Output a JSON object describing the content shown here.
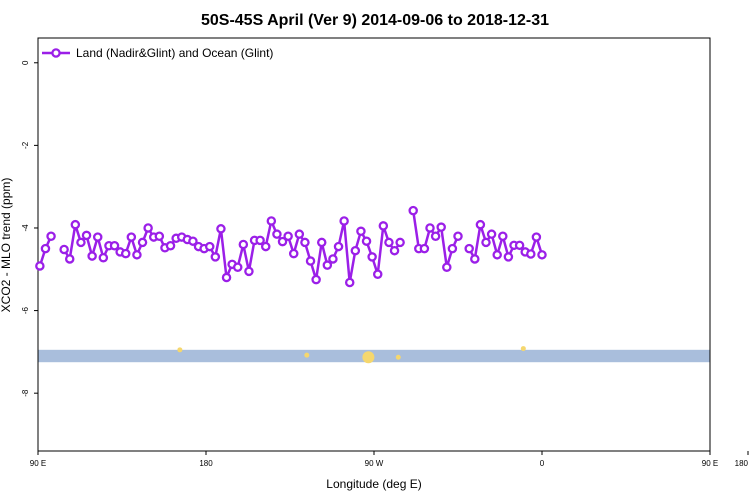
{
  "chart_data": {
    "type": "line",
    "title": "50S-45S April (Ver 9)   2014-09-06 to 2018-12-31",
    "xlabel": "Longitude (deg E)",
    "ylabel": "XCO2 - MLO trend (ppm)",
    "xlim": [
      90,
      450
    ],
    "ylim": [
      -9.4,
      0.6
    ],
    "x_ticks": [
      {
        "value": 90,
        "label": "90 E"
      },
      {
        "value": 180,
        "label": "180"
      },
      {
        "value": 270,
        "label": "90 W"
      },
      {
        "value": 360,
        "label": "0"
      },
      {
        "value": 450,
        "label": "90 E"
      },
      {
        "value": 540,
        "label": "180"
      }
    ],
    "y_ticks": [
      {
        "value": 0,
        "label": "0"
      },
      {
        "value": -2,
        "label": "-2"
      },
      {
        "value": -4,
        "label": "-4"
      },
      {
        "value": -6,
        "label": "-6"
      },
      {
        "value": -8,
        "label": "-8"
      }
    ],
    "legend": {
      "position": "top-left",
      "entries": [
        "Land (Nadir&Glint) and Ocean (Glint)"
      ]
    },
    "grid": false,
    "colors": {
      "series": "#9b1fe8",
      "band": "#a9bedc",
      "land": "#f5d76e"
    },
    "series": [
      {
        "name": "Land (Nadir&Glint) and Ocean (Glint)",
        "points": [
          [
            91,
            -4.92
          ],
          [
            94,
            -4.5
          ],
          [
            97,
            -4.2
          ],
          [
            104,
            -4.52
          ],
          [
            107,
            -4.75
          ],
          [
            110,
            -3.92
          ],
          [
            113,
            -4.35
          ],
          [
            116,
            -4.18
          ],
          [
            119,
            -4.68
          ],
          [
            122,
            -4.22
          ],
          [
            125,
            -4.72
          ],
          [
            128,
            -4.43
          ],
          [
            131,
            -4.43
          ],
          [
            134,
            -4.58
          ],
          [
            137,
            -4.62
          ],
          [
            140,
            -4.22
          ],
          [
            143,
            -4.65
          ],
          [
            146,
            -4.35
          ],
          [
            149,
            -4.0
          ],
          [
            152,
            -4.22
          ],
          [
            155,
            -4.2
          ],
          [
            158,
            -4.48
          ],
          [
            161,
            -4.43
          ],
          [
            164,
            -4.25
          ],
          [
            167,
            -4.22
          ],
          [
            170,
            -4.28
          ],
          [
            173,
            -4.32
          ],
          [
            176,
            -4.45
          ],
          [
            179,
            -4.5
          ],
          [
            182,
            -4.45
          ],
          [
            185,
            -4.7
          ],
          [
            188,
            -4.02
          ],
          [
            191,
            -5.2
          ],
          [
            194,
            -4.88
          ],
          [
            197,
            -4.95
          ],
          [
            200,
            -4.4
          ],
          [
            203,
            -5.05
          ],
          [
            206,
            -4.3
          ],
          [
            209,
            -4.3
          ],
          [
            212,
            -4.45
          ],
          [
            215,
            -3.83
          ],
          [
            218,
            -4.15
          ],
          [
            221,
            -4.33
          ],
          [
            224,
            -4.2
          ],
          [
            227,
            -4.62
          ],
          [
            230,
            -4.15
          ],
          [
            233,
            -4.35
          ],
          [
            236,
            -4.8
          ],
          [
            239,
            -5.25
          ],
          [
            242,
            -4.35
          ],
          [
            245,
            -4.9
          ],
          [
            248,
            -4.75
          ],
          [
            251,
            -4.45
          ],
          [
            254,
            -3.83
          ],
          [
            257,
            -5.32
          ],
          [
            260,
            -4.55
          ],
          [
            263,
            -4.08
          ],
          [
            266,
            -4.32
          ],
          [
            269,
            -4.7
          ],
          [
            272,
            -5.12
          ],
          [
            275,
            -3.95
          ],
          [
            278,
            -4.35
          ],
          [
            281,
            -4.55
          ],
          [
            284,
            -4.35
          ],
          [
            291,
            -3.58
          ],
          [
            294,
            -4.5
          ],
          [
            297,
            -4.5
          ],
          [
            300,
            -4.0
          ],
          [
            303,
            -4.2
          ],
          [
            306,
            -3.98
          ],
          [
            309,
            -4.95
          ],
          [
            312,
            -4.5
          ],
          [
            315,
            -4.2
          ],
          [
            321,
            -4.5
          ],
          [
            324,
            -4.75
          ],
          [
            327,
            -3.92
          ],
          [
            330,
            -4.35
          ],
          [
            333,
            -4.15
          ],
          [
            336,
            -4.65
          ],
          [
            339,
            -4.2
          ],
          [
            342,
            -4.7
          ],
          [
            345,
            -4.42
          ],
          [
            348,
            -4.42
          ],
          [
            351,
            -4.58
          ],
          [
            354,
            -4.63
          ],
          [
            357,
            -4.22
          ],
          [
            360,
            -4.65
          ]
        ]
      }
    ],
    "band": {
      "y_min": -7.25,
      "y_max": -6.95
    },
    "land_marks": [
      {
        "x": 166,
        "y": -6.95
      },
      {
        "x": 234,
        "y": -7.08
      },
      {
        "x": 267,
        "y": -7.13
      },
      {
        "x": 283,
        "y": -7.13
      },
      {
        "x": 350,
        "y": -6.92
      }
    ]
  }
}
